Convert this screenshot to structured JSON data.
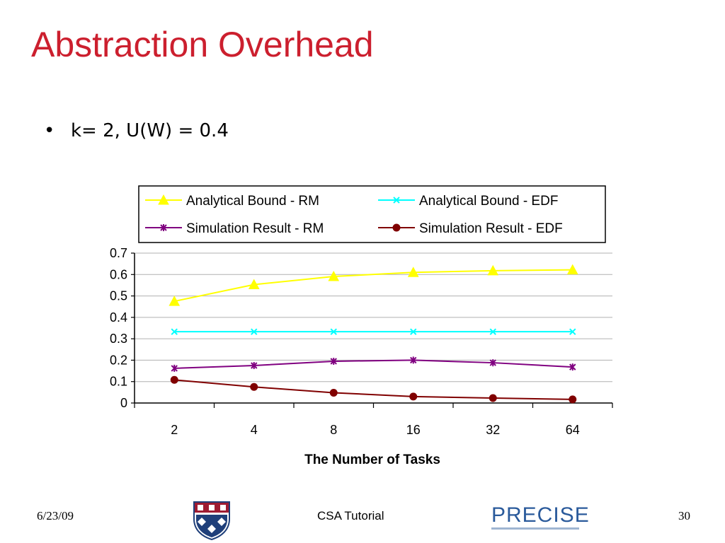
{
  "slide": {
    "title": "Abstraction Overhead",
    "bullet": "k= 2, U(W) = 0.4",
    "footer_date": "6/23/09",
    "footer_center": "CSA Tutorial",
    "footer_page": "30",
    "logo_right_text": "PRECISE"
  },
  "colors": {
    "title": "#cc1f2e",
    "rm_bound": "#ffff00",
    "edf_bound": "#00ffff",
    "rm_sim": "#800080",
    "edf_sim": "#800000"
  },
  "chart_data": {
    "type": "line",
    "title": "",
    "xlabel": "The Number of Tasks",
    "ylabel": "",
    "categories": [
      "2",
      "4",
      "8",
      "16",
      "32",
      "64"
    ],
    "ylim": [
      0,
      0.7
    ],
    "yticks": [
      "0",
      "0.1",
      "0.2",
      "0.3",
      "0.4",
      "0.5",
      "0.6",
      "0.7"
    ],
    "grid": true,
    "legend_position": "top",
    "series": [
      {
        "name": "Analytical Bound - RM",
        "color": "#ffff00",
        "marker": "triangle",
        "values": [
          0.475,
          0.553,
          0.591,
          0.61,
          0.618,
          0.622
        ]
      },
      {
        "name": "Analytical Bound - EDF",
        "color": "#00ffff",
        "marker": "x",
        "values": [
          0.333,
          0.333,
          0.333,
          0.333,
          0.333,
          0.333
        ]
      },
      {
        "name": "Simulation Result - RM",
        "color": "#800080",
        "marker": "star",
        "values": [
          0.162,
          0.175,
          0.195,
          0.2,
          0.188,
          0.168
        ]
      },
      {
        "name": "Simulation Result - EDF",
        "color": "#800000",
        "marker": "circle",
        "values": [
          0.108,
          0.075,
          0.048,
          0.03,
          0.023,
          0.017
        ]
      }
    ]
  }
}
